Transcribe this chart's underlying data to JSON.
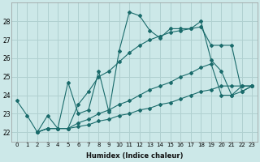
{
  "xlabel": "Humidex (Indice chaleur)",
  "bg_color": "#cce8e8",
  "grid_color": "#b0d0d0",
  "line_color": "#1a6b6b",
  "ylim": [
    21.5,
    29.0
  ],
  "xlim": [
    -0.5,
    23.5
  ],
  "yticks": [
    22,
    23,
    24,
    25,
    26,
    27,
    28
  ],
  "xticks": [
    0,
    1,
    2,
    3,
    4,
    5,
    6,
    7,
    8,
    9,
    10,
    11,
    12,
    13,
    14,
    15,
    16,
    17,
    18,
    19,
    20,
    21,
    22,
    23
  ],
  "series1_x": [
    0,
    1,
    2,
    3,
    4,
    5,
    6,
    7,
    8,
    9,
    10,
    11,
    12,
    13,
    14,
    15,
    16,
    17,
    18,
    19,
    20,
    21,
    22,
    23
  ],
  "series1_y": [
    23.7,
    22.9,
    22.0,
    22.9,
    22.2,
    24.7,
    23.0,
    23.2,
    25.3,
    23.1,
    26.4,
    28.5,
    28.3,
    27.5,
    27.1,
    27.6,
    27.6,
    27.6,
    28.0,
    25.9,
    25.3,
    24.0,
    24.5,
    24.5
  ],
  "series2_x": [
    2,
    3,
    4,
    5,
    6,
    7,
    8,
    9,
    10,
    11,
    12,
    13,
    14,
    15,
    16,
    17,
    18,
    19,
    20,
    21,
    22,
    23
  ],
  "series2_y": [
    22.0,
    22.2,
    22.2,
    22.2,
    23.5,
    24.2,
    25.0,
    25.3,
    25.8,
    26.3,
    26.7,
    27.0,
    27.2,
    27.4,
    27.5,
    27.6,
    27.7,
    26.7,
    26.7,
    26.7,
    24.2,
    24.5
  ],
  "series3_x": [
    2,
    3,
    4,
    5,
    6,
    7,
    8,
    9,
    10,
    11,
    12,
    13,
    14,
    15,
    16,
    17,
    18,
    19,
    20,
    21,
    22,
    23
  ],
  "series3_y": [
    22.0,
    22.2,
    22.2,
    22.2,
    22.5,
    22.7,
    23.0,
    23.2,
    23.5,
    23.7,
    24.0,
    24.3,
    24.5,
    24.7,
    25.0,
    25.2,
    25.5,
    25.7,
    24.0,
    24.0,
    24.2,
    24.5
  ],
  "series4_x": [
    2,
    3,
    4,
    5,
    6,
    7,
    8,
    9,
    10,
    11,
    12,
    13,
    14,
    15,
    16,
    17,
    18,
    19,
    20,
    21,
    22,
    23
  ],
  "series4_y": [
    22.0,
    22.2,
    22.2,
    22.2,
    22.3,
    22.4,
    22.6,
    22.7,
    22.9,
    23.0,
    23.2,
    23.3,
    23.5,
    23.6,
    23.8,
    24.0,
    24.2,
    24.3,
    24.5,
    24.5,
    24.5,
    24.5
  ]
}
